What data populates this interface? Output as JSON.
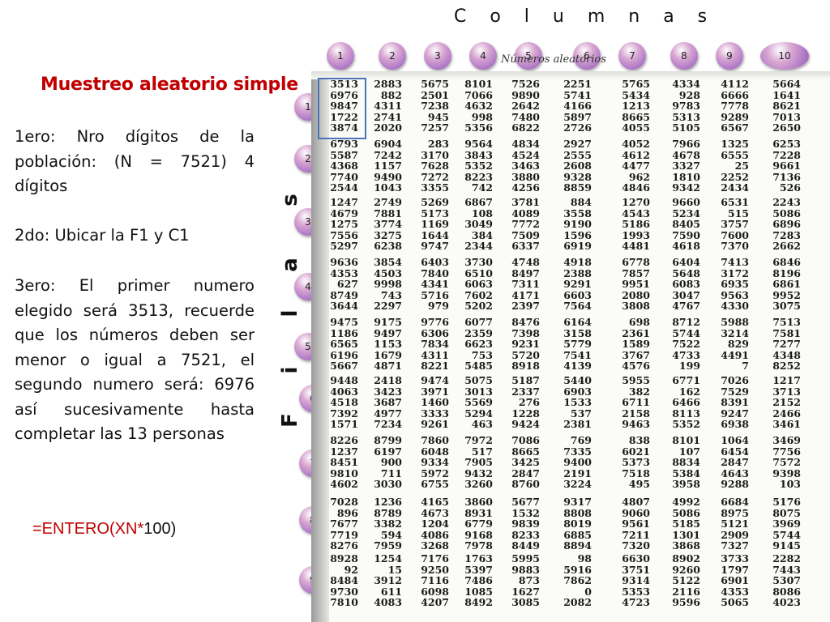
{
  "headings": {
    "columns": "C o l u m n a s",
    "filas": [
      "F",
      "i",
      "l",
      "a",
      "s"
    ],
    "title": "Muestreo aleatorio simple",
    "table_header_fragment": "Números aleatorios"
  },
  "paragraphs": {
    "p1": "1ero: Nro dígitos de la población: (N = 7521) 4 dígitos",
    "p2": "2do: Ubicar la F1 y C1",
    "p3": "3ero: El primer numero elegido será 3513, recuerde que los números deben ser menor o igual a 7521, el segundo numero será: 6976 así sucesivamente hasta completar las 13 personas"
  },
  "formula": {
    "prefix": "=ENTERO(XN",
    "op": "*",
    "suffix": "100)"
  },
  "column_labels": [
    "1",
    "2",
    "3",
    "4",
    "5",
    "6",
    "7",
    "8",
    "9",
    "10"
  ],
  "row_labels": [
    "1",
    "2",
    "3",
    "4",
    "5",
    "6",
    "7",
    "8",
    "9"
  ],
  "colors": {
    "accent_red": "#c00000",
    "bubble_purple": "#b27bc8",
    "highlight_blue": "#4a74b8"
  },
  "table_blocks": [
    [
      [
        "3513",
        "2883",
        "5675",
        "8101",
        "7526",
        "2251",
        "5765",
        "4334",
        "4112",
        "5664"
      ],
      [
        "6976",
        "882",
        "2501",
        "7066",
        "9890",
        "5741",
        "5434",
        "928",
        "6666",
        "1641"
      ],
      [
        "9847",
        "4311",
        "7238",
        "4632",
        "2642",
        "4166",
        "1213",
        "9783",
        "7778",
        "8621"
      ],
      [
        "1722",
        "2741",
        "945",
        "998",
        "7480",
        "5897",
        "8665",
        "5313",
        "9289",
        "7013"
      ],
      [
        "3874",
        "2020",
        "7257",
        "5356",
        "6822",
        "2726",
        "4055",
        "5105",
        "6567",
        "2650"
      ]
    ],
    [
      [
        "6793",
        "6904",
        "283",
        "9564",
        "4834",
        "2927",
        "4052",
        "7966",
        "1325",
        "6253"
      ],
      [
        "5587",
        "7242",
        "3170",
        "3843",
        "4524",
        "2555",
        "4612",
        "4678",
        "6555",
        "7228"
      ],
      [
        "4368",
        "1157",
        "7628",
        "5352",
        "3463",
        "2608",
        "4477",
        "3327",
        "25",
        "9661"
      ],
      [
        "7740",
        "9490",
        "7272",
        "8223",
        "3880",
        "9328",
        "962",
        "1810",
        "2252",
        "7136"
      ],
      [
        "2544",
        "1043",
        "3355",
        "742",
        "4256",
        "8859",
        "4846",
        "9342",
        "2434",
        "526"
      ]
    ],
    [
      [
        "1247",
        "2749",
        "5269",
        "6867",
        "3781",
        "884",
        "1270",
        "9660",
        "6531",
        "2243"
      ],
      [
        "4679",
        "7881",
        "5173",
        "108",
        "4089",
        "3558",
        "4543",
        "5234",
        "515",
        "5086"
      ],
      [
        "1275",
        "3774",
        "1169",
        "3049",
        "7772",
        "9190",
        "5186",
        "8405",
        "3757",
        "6896"
      ],
      [
        "7556",
        "3275",
        "1644",
        "384",
        "7509",
        "1596",
        "1993",
        "7590",
        "7600",
        "7283"
      ],
      [
        "5297",
        "6238",
        "9747",
        "2344",
        "6337",
        "6919",
        "4481",
        "4618",
        "7370",
        "2662"
      ]
    ],
    [
      [
        "9636",
        "3854",
        "6403",
        "3730",
        "4748",
        "4918",
        "6778",
        "6404",
        "7413",
        "6846"
      ],
      [
        "4353",
        "4503",
        "7840",
        "6510",
        "8497",
        "2388",
        "7857",
        "5648",
        "3172",
        "8196"
      ],
      [
        "627",
        "9998",
        "4341",
        "6063",
        "7311",
        "9291",
        "9951",
        "6083",
        "6935",
        "6861"
      ],
      [
        "8749",
        "743",
        "5716",
        "7602",
        "4171",
        "6603",
        "2080",
        "3047",
        "9563",
        "9952"
      ],
      [
        "3644",
        "2297",
        "979",
        "5202",
        "2397",
        "7564",
        "3808",
        "4767",
        "4330",
        "3075"
      ]
    ],
    [
      [
        "9475",
        "9175",
        "9776",
        "6077",
        "8476",
        "6164",
        "698",
        "8712",
        "5988",
        "7513"
      ],
      [
        "1186",
        "9497",
        "6306",
        "2359",
        "7398",
        "3158",
        "2361",
        "5744",
        "3214",
        "7581"
      ],
      [
        "6565",
        "1153",
        "7834",
        "6623",
        "9231",
        "5779",
        "1589",
        "7522",
        "829",
        "7277"
      ],
      [
        "6196",
        "1679",
        "4311",
        "753",
        "5720",
        "7541",
        "3767",
        "4733",
        "4491",
        "4348"
      ],
      [
        "5667",
        "4871",
        "8221",
        "5485",
        "8918",
        "4139",
        "4576",
        "199",
        "7",
        "8252"
      ]
    ],
    [
      [
        "9448",
        "2418",
        "9474",
        "5075",
        "5187",
        "5440",
        "5955",
        "6771",
        "7026",
        "1217"
      ],
      [
        "4063",
        "3423",
        "3971",
        "3013",
        "2337",
        "6903",
        "382",
        "162",
        "7529",
        "3713"
      ],
      [
        "4518",
        "3687",
        "1460",
        "5569",
        "276",
        "1533",
        "6711",
        "6466",
        "8391",
        "2152"
      ],
      [
        "7392",
        "4977",
        "3333",
        "5294",
        "1228",
        "537",
        "2158",
        "8113",
        "9247",
        "2466"
      ],
      [
        "1571",
        "7234",
        "9261",
        "463",
        "9424",
        "2381",
        "9463",
        "5352",
        "6938",
        "3461"
      ]
    ],
    [
      [
        "8226",
        "8799",
        "7860",
        "7972",
        "7086",
        "769",
        "838",
        "8101",
        "1064",
        "3469"
      ],
      [
        "1237",
        "6197",
        "6048",
        "517",
        "8665",
        "7335",
        "6021",
        "107",
        "6454",
        "7756"
      ],
      [
        "8451",
        "900",
        "9334",
        "7905",
        "3425",
        "9400",
        "5373",
        "8834",
        "2847",
        "7572"
      ],
      [
        "9810",
        "711",
        "5972",
        "9432",
        "2847",
        "2191",
        "7518",
        "5384",
        "4643",
        "9398"
      ],
      [
        "4602",
        "3030",
        "6755",
        "3260",
        "8760",
        "3224",
        "495",
        "3958",
        "9288",
        "103"
      ]
    ],
    [
      [
        "7028",
        "1236",
        "4165",
        "3860",
        "5677",
        "9317",
        "4807",
        "4992",
        "6684",
        "5176"
      ],
      [
        "896",
        "8789",
        "4673",
        "8931",
        "1532",
        "8808",
        "9060",
        "5086",
        "8975",
        "8075"
      ],
      [
        "7677",
        "3382",
        "1204",
        "6779",
        "9839",
        "8019",
        "9561",
        "5185",
        "5121",
        "3969"
      ],
      [
        "7719",
        "594",
        "4086",
        "9168",
        "8233",
        "6885",
        "7211",
        "1301",
        "2909",
        "5744"
      ],
      [
        "8276",
        "7959",
        "3268",
        "7978",
        "8449",
        "8894",
        "7320",
        "3868",
        "7327",
        "9145"
      ]
    ],
    [
      [
        "8928",
        "1254",
        "7176",
        "1763",
        "5995",
        "98",
        "6630",
        "8902",
        "3733",
        "2282"
      ],
      [
        "92",
        "15",
        "9250",
        "5397",
        "9883",
        "5916",
        "3751",
        "9260",
        "1797",
        "7443"
      ],
      [
        "8484",
        "3912",
        "7116",
        "7486",
        "873",
        "7862",
        "9314",
        "5122",
        "6901",
        "5307"
      ],
      [
        "9730",
        "611",
        "6098",
        "1085",
        "1627",
        "0",
        "5353",
        "2116",
        "4353",
        "8086"
      ],
      [
        "7810",
        "4083",
        "4207",
        "8492",
        "3085",
        "2082",
        "4723",
        "9596",
        "5065",
        "4023"
      ]
    ]
  ]
}
